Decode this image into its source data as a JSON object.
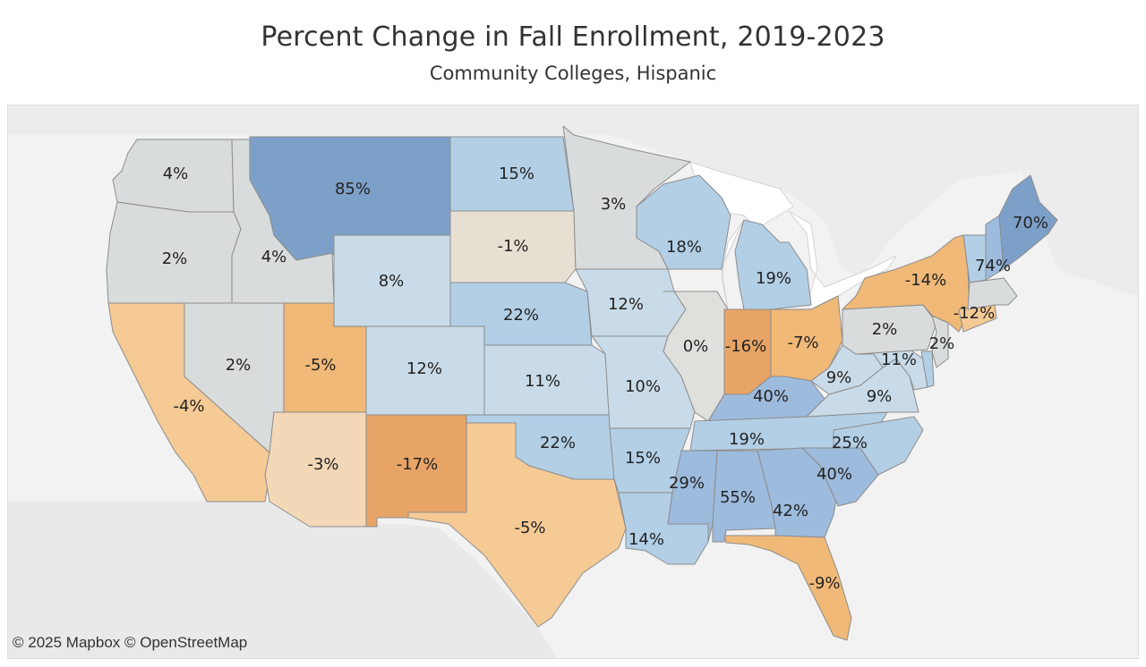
{
  "title": "Percent Change in Fall Enrollment, 2019-2023",
  "subtitle": "Community Colleges, Hispanic",
  "attribution": "© 2025 Mapbox  © OpenStreetMap",
  "colors": {
    "background": "#ffffff",
    "map_land": "#f2f2f2",
    "map_water": "#ffffff",
    "negative_strong": "#e8a466",
    "negative_mid": "#f0b978",
    "negative_light": "#f5ca95",
    "negative_pale": "#f3d8b8",
    "neutral": "#d9dcdc",
    "positive_pale": "#c9dbe8",
    "positive_light": "#b2cfe6",
    "positive_mid": "#9dbbdd",
    "positive_strong": "#7da0c9"
  },
  "states": [
    {
      "id": "WA",
      "value": "4%"
    },
    {
      "id": "OR",
      "value": "2%"
    },
    {
      "id": "CA",
      "value": "-4%"
    },
    {
      "id": "ID",
      "value": "4%"
    },
    {
      "id": "NV",
      "value": "2%"
    },
    {
      "id": "MT",
      "value": "85%"
    },
    {
      "id": "WY",
      "value": "8%"
    },
    {
      "id": "UT",
      "value": "-5%"
    },
    {
      "id": "AZ",
      "value": "-3%"
    },
    {
      "id": "CO",
      "value": "12%"
    },
    {
      "id": "NM",
      "value": "-17%"
    },
    {
      "id": "ND",
      "value": "15%"
    },
    {
      "id": "SD",
      "value": "-1%"
    },
    {
      "id": "NE",
      "value": "22%"
    },
    {
      "id": "KS",
      "value": "11%"
    },
    {
      "id": "OK",
      "value": "22%"
    },
    {
      "id": "TX",
      "value": "-5%"
    },
    {
      "id": "MN",
      "value": "3%"
    },
    {
      "id": "IA",
      "value": "12%"
    },
    {
      "id": "MO",
      "value": "10%"
    },
    {
      "id": "AR",
      "value": "15%"
    },
    {
      "id": "LA",
      "value": "14%"
    },
    {
      "id": "WI",
      "value": "18%"
    },
    {
      "id": "IL",
      "value": "0%"
    },
    {
      "id": "MI",
      "value": "19%"
    },
    {
      "id": "IN",
      "value": "-16%"
    },
    {
      "id": "OH",
      "value": "-7%"
    },
    {
      "id": "KY",
      "value": "40%"
    },
    {
      "id": "TN",
      "value": "19%"
    },
    {
      "id": "MS",
      "value": "29%"
    },
    {
      "id": "AL",
      "value": "55%"
    },
    {
      "id": "GA",
      "value": "42%"
    },
    {
      "id": "FL",
      "value": "-9%"
    },
    {
      "id": "SC",
      "value": "40%"
    },
    {
      "id": "NC",
      "value": "25%"
    },
    {
      "id": "VA",
      "value": "9%"
    },
    {
      "id": "WV",
      "value": "9%"
    },
    {
      "id": "MD",
      "value": "11%"
    },
    {
      "id": "DE",
      "value": ""
    },
    {
      "id": "PA",
      "value": "2%"
    },
    {
      "id": "NJ",
      "value": "2%"
    },
    {
      "id": "NY",
      "value": "-14%"
    },
    {
      "id": "CT",
      "value": "-12%"
    },
    {
      "id": "VT",
      "value": ""
    },
    {
      "id": "NH",
      "value": "74%"
    },
    {
      "id": "ME",
      "value": "70%"
    },
    {
      "id": "MA",
      "value": ""
    }
  ]
}
